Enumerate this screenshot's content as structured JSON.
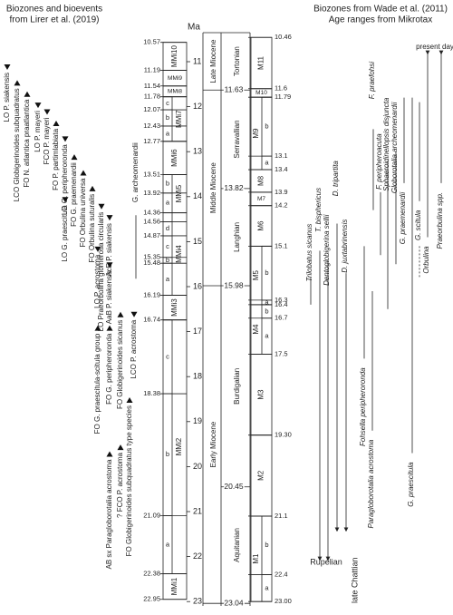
{
  "headers": {
    "left": [
      "Biozones and bioevents",
      "from Lirer et al. (2019)"
    ],
    "right": [
      "Biozones from Wade et al. (2011)",
      "Age ranges from Mikrotax"
    ]
  },
  "ma_axis": {
    "label": "Ma",
    "ticks": [
      11,
      12,
      13,
      14,
      15,
      16,
      17,
      18,
      19,
      20,
      21,
      22,
      23
    ]
  },
  "lirer": {
    "boundaries": [
      "10.57",
      "11.19",
      "11.54",
      "11.78",
      "12.07",
      "12.43",
      "12.77",
      "13.51",
      "13.92",
      "14.36",
      "14.56",
      "14.87",
      "15.35",
      "15.48",
      "16.19",
      "16.74",
      "18.38",
      "21.09",
      "22.38",
      "22.95"
    ],
    "zones": [
      {
        "name": "MMi10",
        "range": [
          10.57,
          11.19
        ]
      },
      {
        "name": "MMi9",
        "range": [
          11.19,
          11.54
        ]
      },
      {
        "name": "MMi8",
        "range": [
          11.54,
          11.78
        ]
      },
      {
        "name": "MMi7",
        "range": [
          11.78,
          12.77
        ],
        "subzones": [
          {
            "letter": "c",
            "range": [
              11.78,
              12.07
            ]
          },
          {
            "letter": "b",
            "range": [
              12.07,
              12.43
            ]
          },
          {
            "letter": "a",
            "range": [
              12.43,
              12.77
            ]
          }
        ]
      },
      {
        "name": "MMi6",
        "range": [
          12.77,
          13.51
        ]
      },
      {
        "name": "MMi5",
        "range": [
          13.51,
          14.36
        ],
        "subzones": [
          {
            "letter": "b",
            "range": [
              13.51,
              13.92
            ]
          },
          {
            "letter": "a",
            "range": [
              13.92,
              14.36
            ]
          }
        ]
      },
      {
        "name": "MMi4",
        "range": [
          14.36,
          16.19
        ],
        "subzones": [
          {
            "letter": "d",
            "range": [
              14.56,
              14.87
            ]
          },
          {
            "letter": "c",
            "range": [
              14.87,
              15.35
            ]
          },
          {
            "letter": "b",
            "range": [
              15.35,
              15.48
            ]
          },
          {
            "letter": "a",
            "range": [
              15.48,
              16.19
            ]
          }
        ]
      },
      {
        "name": "MMi3",
        "range": [
          16.19,
          16.74
        ]
      },
      {
        "name": "MMi2",
        "range": [
          16.74,
          22.38
        ],
        "subzones": [
          {
            "letter": "c",
            "range": [
              16.74,
              18.38
            ]
          },
          {
            "letter": "b",
            "range": [
              18.38,
              21.09
            ]
          },
          {
            "letter": "a",
            "range": [
              21.09,
              22.38
            ]
          }
        ]
      },
      {
        "name": "MMi1",
        "range": [
          22.38,
          22.95
        ]
      }
    ]
  },
  "epochs": [
    {
      "name": "Late Miocene",
      "base": 11.63
    },
    {
      "name": "Middle Miocene",
      "base": 15.98
    },
    {
      "name": "Early Miocene",
      "base": 23.04
    }
  ],
  "stages": [
    {
      "name": "Tortonian",
      "base": 11.63
    },
    {
      "name": "Serravallian",
      "base": 13.82
    },
    {
      "name": "Langhian",
      "base": 15.98
    },
    {
      "name": "Burdigalian",
      "base": 20.45
    },
    {
      "name": "Aquitanian",
      "base": 23.04
    }
  ],
  "wade": {
    "boundaries": [
      "10.46",
      "11.6",
      "11.79",
      "13.1",
      "13.4",
      "13.9",
      "14.2",
      "15.1",
      "16.3",
      "16.4",
      "16.7",
      "17.5",
      "19.30",
      "21.1",
      "22.4",
      "23.00"
    ],
    "zones": [
      {
        "name": "M11",
        "range": [
          10.46,
          11.6
        ]
      },
      {
        "name": "M10",
        "range": [
          11.6,
          11.79
        ]
      },
      {
        "name": "M9",
        "range": [
          11.79,
          13.4
        ],
        "subzones": [
          {
            "letter": "b",
            "range": [
              11.79,
              13.1
            ]
          },
          {
            "letter": "a",
            "range": [
              13.1,
              13.4
            ]
          }
        ]
      },
      {
        "name": "M8",
        "range": [
          13.4,
          13.9
        ]
      },
      {
        "name": "M7",
        "range": [
          13.9,
          14.2
        ]
      },
      {
        "name": "M6",
        "range": [
          14.2,
          15.1
        ]
      },
      {
        "name": "M5",
        "range": [
          15.1,
          16.4
        ],
        "subzones": [
          {
            "letter": "b",
            "range": [
              15.1,
              16.3
            ]
          },
          {
            "letter": "a",
            "range": [
              16.3,
              16.4
            ]
          }
        ]
      },
      {
        "name": "M4",
        "range": [
          16.4,
          17.5
        ],
        "subzones": [
          {
            "letter": "b",
            "range": [
              16.4,
              16.7
            ]
          },
          {
            "letter": "a",
            "range": [
              16.7,
              17.5
            ]
          }
        ]
      },
      {
        "name": "M3",
        "range": [
          17.5,
          19.3
        ]
      },
      {
        "name": "M2",
        "range": [
          19.3,
          21.1
        ]
      },
      {
        "name": "M1",
        "range": [
          21.1,
          23.0
        ],
        "subzones": [
          {
            "letter": "b",
            "range": [
              21.1,
              22.4
            ]
          },
          {
            "letter": "a",
            "range": [
              22.4,
              23.0
            ]
          }
        ]
      }
    ]
  },
  "bioevents": [
    "LO P. siakensis",
    "LCO Globigerinoides subquadratus",
    "FO N. atlantica praatlantica",
    "LO P. mayeri",
    "FCO P. mayeri",
    "FO P. partimlabiata",
    "LO G. peripheroronda",
    "FO G. praemenardii",
    "FO Orbulina universa",
    "FO Orbulina suturalis",
    "LO Praeorbulina glomerosa circularis",
    "AcE P. siakensis",
    "G. archeomenardii",
    "LO G. praescitula",
    "LO P. acrostoma",
    "AaB P. siakensis",
    "FO Globigerinoides sicanus",
    "LCO P. acrostoma",
    "FO G. praescitula-scitula group",
    "FO G. peripheroronda",
    "FO Globigerinoides subquadratus type species",
    "AB sx Paragloborotalia acrostoma",
    "? FCO P. acrostoma"
  ],
  "ranges": [
    "Trilobatus sicanus",
    "T. bisphericus",
    "Dentoglobigerina sellii",
    "D. tripartita",
    "D. juxtabrinensis",
    "Fohsella peripheroronda",
    "Paragloborotalia acrostoma",
    "F. praefohsi",
    "F. peripheroacuta",
    "Sphaeroidinellopsis disjuncta",
    "Globorotalia archeomenardii",
    "G. praemenardii",
    "G. praescitula",
    "G. scitula",
    "Orbulina",
    "Praeorbulina spp."
  ],
  "range_notes": {
    "present": "present day",
    "rupelian": "Rupelian",
    "chattian": "late Chattian"
  }
}
